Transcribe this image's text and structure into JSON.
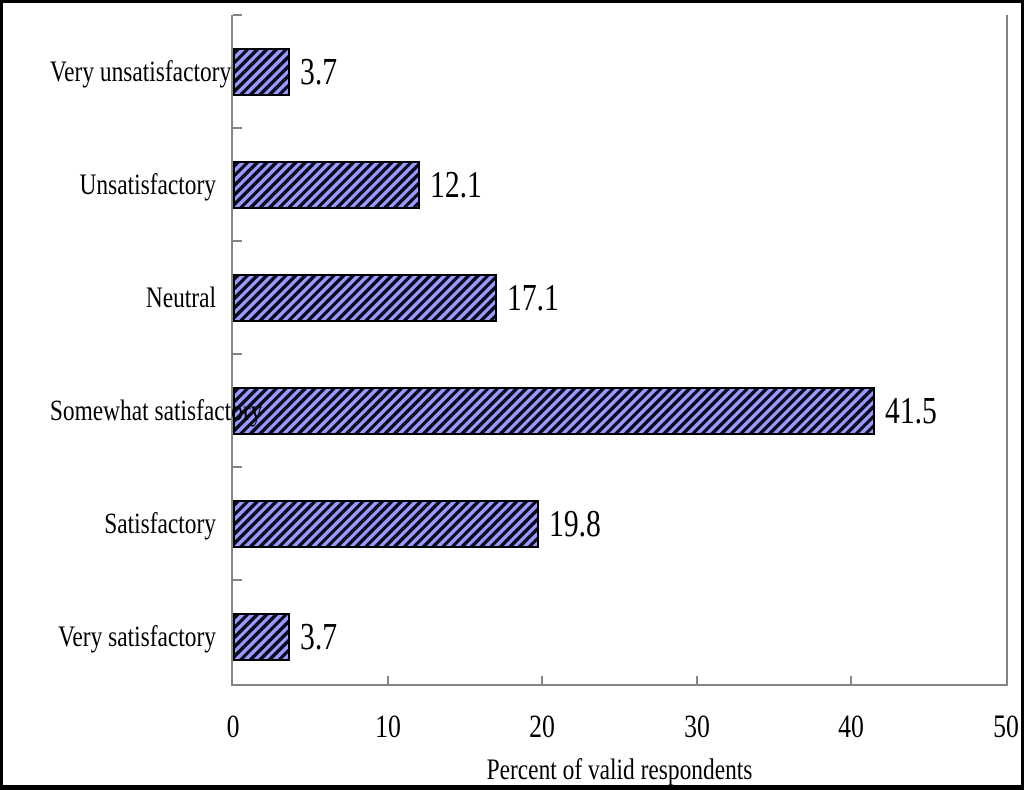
{
  "chart_data": {
    "type": "bar",
    "orientation": "horizontal",
    "categories": [
      "Very unsatisfactory",
      "Unsatisfactory",
      "Neutral",
      "Somewhat satisfactory",
      "Satisfactory",
      "Very satisfactory"
    ],
    "values": [
      3.7,
      12.1,
      17.1,
      41.5,
      19.8,
      3.7
    ],
    "value_labels": [
      "3.7",
      "12.1",
      "17.1",
      "41.5",
      "19.8",
      "3.7"
    ],
    "title": "",
    "xlabel": "Percent of valid respondents",
    "ylabel": "",
    "xlim": [
      0,
      50
    ],
    "xticks": [
      0,
      10,
      20,
      30,
      40,
      50
    ],
    "grid": false,
    "legend": false,
    "bar_style": "diagonal-hatch",
    "colors": {
      "bar_fill_light": "#9999ff",
      "bar_hatch_dark": "#0b0b1e",
      "bar_border": "#000000",
      "axis_line": "#848484",
      "text": "#000000",
      "figure_border": "#000000",
      "background": "#ffffff"
    }
  }
}
